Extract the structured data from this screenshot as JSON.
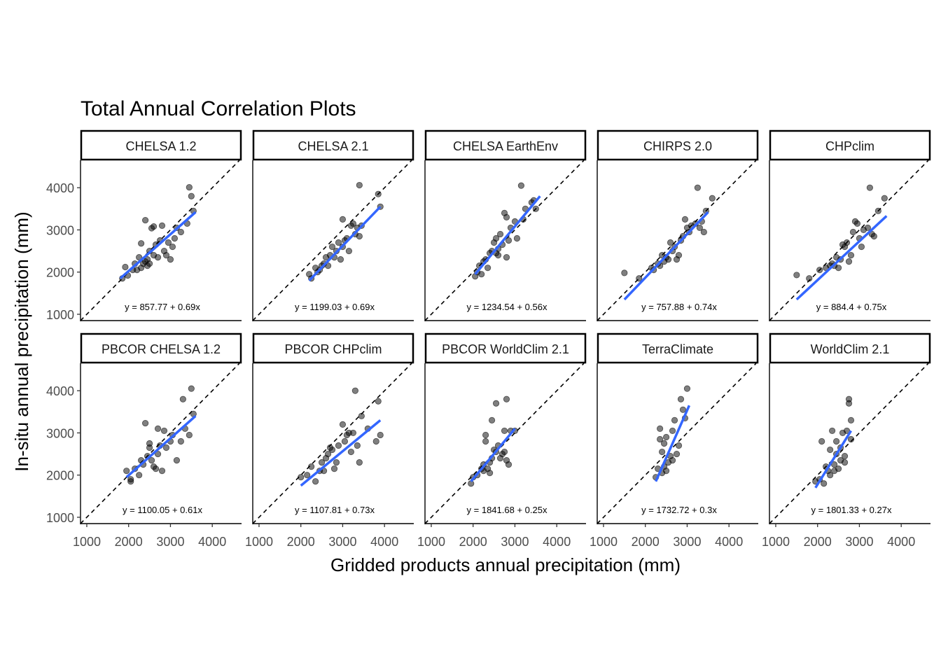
{
  "chart_data": {
    "type": "scatter",
    "title": "Total Annual Correlation Plots",
    "xlabel": "Gridded products annual precipitation (mm)",
    "ylabel": "In-situ annual precipitation (mm)",
    "xlim": [
      850,
      4700
    ],
    "ylim": [
      850,
      4650
    ],
    "x_ticks": [
      "1000",
      "2000",
      "3000",
      "4000"
    ],
    "y_ticks": [
      "1000",
      "2000",
      "3000",
      "4000"
    ],
    "grid": false,
    "reference_line": "1:1 dashed",
    "point_color": "#000000",
    "fit_color": "#3366FF",
    "panels": [
      {
        "name": "CHELSA 1.2",
        "equation": "y = 857.77 + 0.69x",
        "fit": {
          "x": [
            1800,
            3600
          ],
          "y": [
            1850,
            3420
          ]
        },
        "points": [
          [
            1850,
            1850
          ],
          [
            1920,
            2120
          ],
          [
            1980,
            1920
          ],
          [
            2100,
            2050
          ],
          [
            2150,
            2200
          ],
          [
            2200,
            2050
          ],
          [
            2250,
            2350
          ],
          [
            2300,
            2100
          ],
          [
            2300,
            2680
          ],
          [
            2350,
            2200
          ],
          [
            2400,
            2250
          ],
          [
            2400,
            3230
          ],
          [
            2450,
            2300
          ],
          [
            2450,
            2150
          ],
          [
            2500,
            2500
          ],
          [
            2500,
            2200
          ],
          [
            2550,
            3040
          ],
          [
            2600,
            2400
          ],
          [
            2600,
            3080
          ],
          [
            2650,
            2650
          ],
          [
            2700,
            2350
          ],
          [
            2750,
            2750
          ],
          [
            2800,
            3100
          ],
          [
            2850,
            2500
          ],
          [
            2900,
            2400
          ],
          [
            2950,
            2700
          ],
          [
            3000,
            2300
          ],
          [
            3050,
            2600
          ],
          [
            3100,
            2800
          ],
          [
            3150,
            3050
          ],
          [
            3250,
            2950
          ],
          [
            3400,
            3150
          ],
          [
            3450,
            4010
          ],
          [
            3500,
            3800
          ],
          [
            3550,
            3450
          ]
        ]
      },
      {
        "name": "CHELSA 2.1",
        "equation": "y = 1199.03 + 0.69x",
        "fit": {
          "x": [
            2200,
            3900
          ],
          "y": [
            1800,
            3550
          ]
        },
        "points": [
          [
            2200,
            1950
          ],
          [
            2250,
            1850
          ],
          [
            2350,
            2100
          ],
          [
            2400,
            2000
          ],
          [
            2450,
            2050
          ],
          [
            2500,
            2150
          ],
          [
            2550,
            2200
          ],
          [
            2600,
            2350
          ],
          [
            2650,
            2150
          ],
          [
            2700,
            2400
          ],
          [
            2750,
            2600
          ],
          [
            2800,
            2350
          ],
          [
            2850,
            2500
          ],
          [
            2900,
            2700
          ],
          [
            2950,
            2300
          ],
          [
            3000,
            3250
          ],
          [
            3000,
            2600
          ],
          [
            3050,
            2750
          ],
          [
            3100,
            2800
          ],
          [
            3150,
            2500
          ],
          [
            3200,
            3100
          ],
          [
            3250,
            3150
          ],
          [
            3300,
            2900
          ],
          [
            3350,
            3050
          ],
          [
            3400,
            4060
          ],
          [
            3400,
            2850
          ],
          [
            3450,
            3100
          ],
          [
            3850,
            3850
          ],
          [
            3900,
            3550
          ]
        ]
      },
      {
        "name": "CHELSA EarthEnv",
        "equation": "y = 1234.54 + 0.56x",
        "fit": {
          "x": [
            2050,
            3600
          ],
          "y": [
            1950,
            3800
          ]
        },
        "points": [
          [
            2050,
            1900
          ],
          [
            2100,
            2000
          ],
          [
            2150,
            2150
          ],
          [
            2200,
            1950
          ],
          [
            2250,
            2250
          ],
          [
            2300,
            2300
          ],
          [
            2350,
            2100
          ],
          [
            2400,
            2450
          ],
          [
            2450,
            2500
          ],
          [
            2500,
            2700
          ],
          [
            2550,
            2800
          ],
          [
            2550,
            2450
          ],
          [
            2600,
            2400
          ],
          [
            2600,
            2550
          ],
          [
            2650,
            2900
          ],
          [
            2700,
            2650
          ],
          [
            2750,
            3400
          ],
          [
            2800,
            3300
          ],
          [
            2800,
            2350
          ],
          [
            2850,
            2750
          ],
          [
            2900,
            3050
          ],
          [
            3000,
            3200
          ],
          [
            3050,
            2800
          ],
          [
            3150,
            4050
          ],
          [
            3200,
            3250
          ],
          [
            3250,
            3500
          ],
          [
            3400,
            3650
          ],
          [
            3450,
            3700
          ],
          [
            3500,
            3500
          ]
        ]
      },
      {
        "name": "CHIRPS 2.0",
        "equation": "y = 757.88 + 0.74x",
        "fit": {
          "x": [
            1500,
            3500
          ],
          "y": [
            1350,
            3420
          ]
        },
        "points": [
          [
            1500,
            1980
          ],
          [
            1850,
            1850
          ],
          [
            2150,
            2100
          ],
          [
            2200,
            2050
          ],
          [
            2300,
            2200
          ],
          [
            2350,
            2150
          ],
          [
            2400,
            2400
          ],
          [
            2450,
            2250
          ],
          [
            2500,
            2350
          ],
          [
            2550,
            2300
          ],
          [
            2600,
            2700
          ],
          [
            2650,
            2500
          ],
          [
            2700,
            2600
          ],
          [
            2750,
            2300
          ],
          [
            2800,
            2400
          ],
          [
            2850,
            2750
          ],
          [
            2900,
            2850
          ],
          [
            2950,
            3250
          ],
          [
            3000,
            3050
          ],
          [
            3050,
            2950
          ],
          [
            3100,
            3100
          ],
          [
            3200,
            3150
          ],
          [
            3250,
            4000
          ],
          [
            3300,
            3050
          ],
          [
            3350,
            3200
          ],
          [
            3400,
            2950
          ],
          [
            3450,
            3450
          ],
          [
            3600,
            3750
          ]
        ]
      },
      {
        "name": "CHPclim",
        "equation": "y = 884.4 + 0.75x",
        "fit": {
          "x": [
            1500,
            3650
          ],
          "y": [
            1350,
            3330
          ]
        },
        "points": [
          [
            1500,
            1930
          ],
          [
            1800,
            1850
          ],
          [
            2050,
            2050
          ],
          [
            2200,
            2100
          ],
          [
            2300,
            2150
          ],
          [
            2350,
            2200
          ],
          [
            2400,
            2150
          ],
          [
            2450,
            2350
          ],
          [
            2500,
            2100
          ],
          [
            2550,
            2300
          ],
          [
            2600,
            2650
          ],
          [
            2650,
            2600
          ],
          [
            2700,
            2700
          ],
          [
            2750,
            2250
          ],
          [
            2800,
            2400
          ],
          [
            2850,
            2950
          ],
          [
            2900,
            3200
          ],
          [
            2950,
            3150
          ],
          [
            3000,
            2800
          ],
          [
            3050,
            2600
          ],
          [
            3100,
            3000
          ],
          [
            3200,
            3050
          ],
          [
            3250,
            4000
          ],
          [
            3300,
            2900
          ],
          [
            3350,
            2850
          ],
          [
            3450,
            3450
          ],
          [
            3600,
            3750
          ]
        ]
      },
      {
        "name": "PBCOR CHELSA 1.2",
        "equation": "y = 1100.05 + 0.61x",
        "fit": {
          "x": [
            1950,
            3600
          ],
          "y": [
            1950,
            3400
          ]
        },
        "points": [
          [
            1950,
            2100
          ],
          [
            2050,
            1900
          ],
          [
            2050,
            1850
          ],
          [
            2150,
            2150
          ],
          [
            2250,
            2000
          ],
          [
            2300,
            2350
          ],
          [
            2350,
            2250
          ],
          [
            2400,
            3230
          ],
          [
            2450,
            2450
          ],
          [
            2500,
            2650
          ],
          [
            2500,
            2750
          ],
          [
            2550,
            2350
          ],
          [
            2600,
            2200
          ],
          [
            2650,
            2150
          ],
          [
            2700,
            3100
          ],
          [
            2700,
            2500
          ],
          [
            2750,
            2700
          ],
          [
            2800,
            2100
          ],
          [
            2850,
            3050
          ],
          [
            2900,
            2650
          ],
          [
            3000,
            2800
          ],
          [
            3050,
            2950
          ],
          [
            3150,
            2350
          ],
          [
            3250,
            2800
          ],
          [
            3300,
            3800
          ],
          [
            3350,
            3100
          ],
          [
            3450,
            2950
          ],
          [
            3500,
            4050
          ],
          [
            3550,
            3450
          ]
        ]
      },
      {
        "name": "PBCOR CHPclim",
        "equation": "y = 1107.81 + 0.73x",
        "fit": {
          "x": [
            2000,
            3900
          ],
          "y": [
            1750,
            3300
          ]
        },
        "points": [
          [
            2000,
            1950
          ],
          [
            2150,
            2000
          ],
          [
            2250,
            2200
          ],
          [
            2350,
            1850
          ],
          [
            2450,
            2100
          ],
          [
            2500,
            2300
          ],
          [
            2550,
            2100
          ],
          [
            2600,
            2400
          ],
          [
            2650,
            2500
          ],
          [
            2700,
            2650
          ],
          [
            2750,
            2600
          ],
          [
            2800,
            2150
          ],
          [
            2850,
            2300
          ],
          [
            2900,
            2700
          ],
          [
            3000,
            3200
          ],
          [
            3050,
            2800
          ],
          [
            3100,
            2950
          ],
          [
            3150,
            3000
          ],
          [
            3200,
            2550
          ],
          [
            3250,
            3000
          ],
          [
            3300,
            4000
          ],
          [
            3350,
            2700
          ],
          [
            3400,
            2300
          ],
          [
            3450,
            3400
          ],
          [
            3600,
            3100
          ],
          [
            3800,
            2800
          ],
          [
            3850,
            3750
          ],
          [
            3900,
            2950
          ]
        ]
      },
      {
        "name": "PBCOR WorldClim 2.1",
        "equation": "y = 1841.68 + 0.25x",
        "fit": {
          "x": [
            1950,
            3000
          ],
          "y": [
            1850,
            3100
          ]
        },
        "points": [
          [
            1950,
            1800
          ],
          [
            2000,
            1950
          ],
          [
            2100,
            2000
          ],
          [
            2200,
            2150
          ],
          [
            2250,
            2250
          ],
          [
            2250,
            2100
          ],
          [
            2300,
            2800
          ],
          [
            2300,
            2950
          ],
          [
            2350,
            2150
          ],
          [
            2400,
            2300
          ],
          [
            2400,
            2050
          ],
          [
            2450,
            2400
          ],
          [
            2450,
            3300
          ],
          [
            2500,
            2600
          ],
          [
            2550,
            2550
          ],
          [
            2550,
            3700
          ],
          [
            2600,
            2700
          ],
          [
            2650,
            2400
          ],
          [
            2700,
            2500
          ],
          [
            2750,
            2550
          ],
          [
            2750,
            3050
          ],
          [
            2800,
            2350
          ],
          [
            2800,
            3800
          ],
          [
            2850,
            2250
          ],
          [
            2900,
            3050
          ],
          [
            3000,
            3050
          ]
        ]
      },
      {
        "name": "TerraClimate",
        "equation": "y = 1732.72 + 0.3x",
        "fit": {
          "x": [
            2250,
            3050
          ],
          "y": [
            1850,
            3650
          ]
        },
        "points": [
          [
            2250,
            1950
          ],
          [
            2300,
            2150
          ],
          [
            2350,
            2850
          ],
          [
            2350,
            3100
          ],
          [
            2400,
            2050
          ],
          [
            2400,
            2550
          ],
          [
            2450,
            2750
          ],
          [
            2450,
            2200
          ],
          [
            2500,
            2900
          ],
          [
            2500,
            2100
          ],
          [
            2550,
            2300
          ],
          [
            2600,
            2450
          ],
          [
            2650,
            3050
          ],
          [
            2650,
            2350
          ],
          [
            2700,
            3300
          ],
          [
            2750,
            2500
          ],
          [
            2800,
            2700
          ],
          [
            2850,
            3800
          ],
          [
            2900,
            3550
          ],
          [
            2950,
            3350
          ],
          [
            3000,
            4050
          ]
        ]
      },
      {
        "name": "WorldClim 2.1",
        "equation": "y = 1801.33 + 0.27x",
        "fit": {
          "x": [
            1950,
            2800
          ],
          "y": [
            1700,
            3050
          ]
        },
        "points": [
          [
            1950,
            1850
          ],
          [
            2050,
            1900
          ],
          [
            2100,
            2800
          ],
          [
            2150,
            1800
          ],
          [
            2200,
            2200
          ],
          [
            2250,
            2100
          ],
          [
            2300,
            2000
          ],
          [
            2300,
            2600
          ],
          [
            2350,
            3050
          ],
          [
            2400,
            2250
          ],
          [
            2400,
            2100
          ],
          [
            2450,
            2500
          ],
          [
            2450,
            2800
          ],
          [
            2500,
            2150
          ],
          [
            2550,
            2650
          ],
          [
            2550,
            2350
          ],
          [
            2600,
            3000
          ],
          [
            2650,
            2300
          ],
          [
            2650,
            2450
          ],
          [
            2700,
            3050
          ],
          [
            2750,
            3800
          ],
          [
            2750,
            3700
          ],
          [
            2800,
            3300
          ],
          [
            2800,
            2850
          ]
        ]
      }
    ]
  }
}
